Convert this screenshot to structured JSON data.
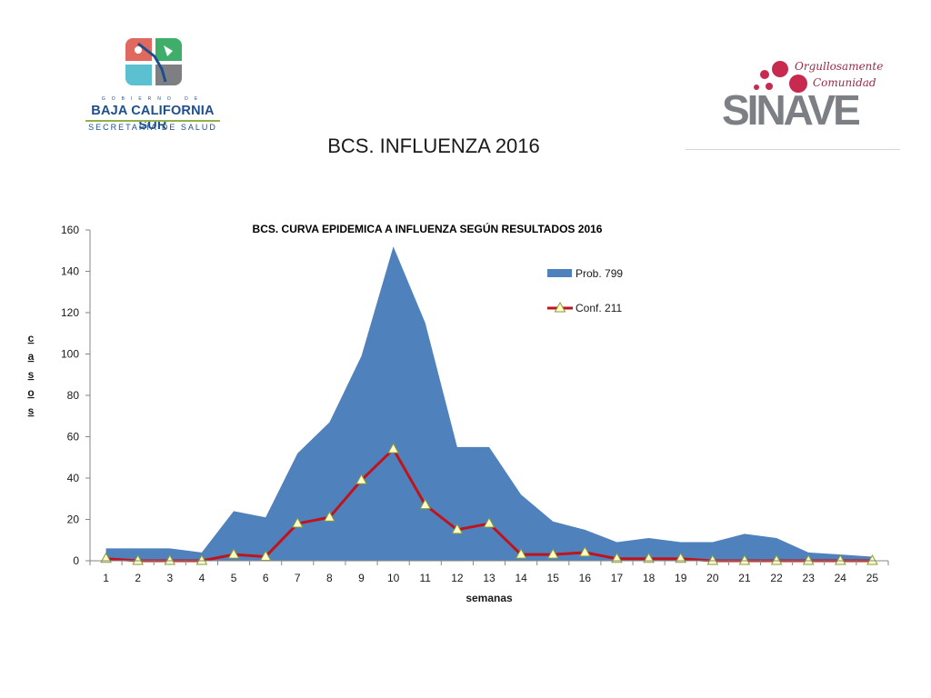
{
  "header": {
    "title": "BCS. INFLUENZA 2016",
    "left_logo": {
      "govt_line": "GOBIERNO DE",
      "state": "BAJA CALIFORNIA SUR",
      "department": "SECRETARÍA DE SALUD"
    },
    "right_logo": {
      "tagline_1": "Orgullosamente",
      "tagline_2": "Comunidad",
      "wordmark": "SINAVE"
    }
  },
  "colors": {
    "area": "#4f81bd",
    "line": "#c0141c",
    "marker_fill": "#ffffc8",
    "marker_stroke": "#8a9a3a",
    "axis": "#868686"
  },
  "chart_data": {
    "type": "area",
    "title": "BCS. CURVA EPIDEMICA A INFLUENZA SEGÚN RESULTADOS 2016",
    "xlabel": "semanas",
    "ylabel": "casos",
    "categories": [
      "1",
      "2",
      "3",
      "4",
      "5",
      "6",
      "7",
      "8",
      "9",
      "10",
      "11",
      "12",
      "13",
      "14",
      "15",
      "16",
      "17",
      "18",
      "19",
      "20",
      "21",
      "22",
      "23",
      "24",
      "25"
    ],
    "y_ticks": [
      "0",
      "20",
      "40",
      "60",
      "80",
      "100",
      "120",
      "140",
      "160"
    ],
    "ylim": [
      0,
      160
    ],
    "grid": false,
    "legend_position": "top-right",
    "series": [
      {
        "name": "Prob. 799",
        "type": "area",
        "values": [
          6,
          6,
          6,
          4,
          24,
          21,
          52,
          67,
          99,
          152,
          115,
          55,
          55,
          32,
          19,
          15,
          9,
          11,
          9,
          9,
          13,
          11,
          4,
          3,
          2
        ]
      },
      {
        "name": "Conf. 211",
        "type": "line",
        "values": [
          1,
          0,
          0,
          0,
          3,
          2,
          18,
          21,
          39,
          54,
          27,
          15,
          18,
          3,
          3,
          4,
          1,
          1,
          1,
          0,
          0,
          0,
          0,
          0,
          0
        ]
      }
    ]
  }
}
